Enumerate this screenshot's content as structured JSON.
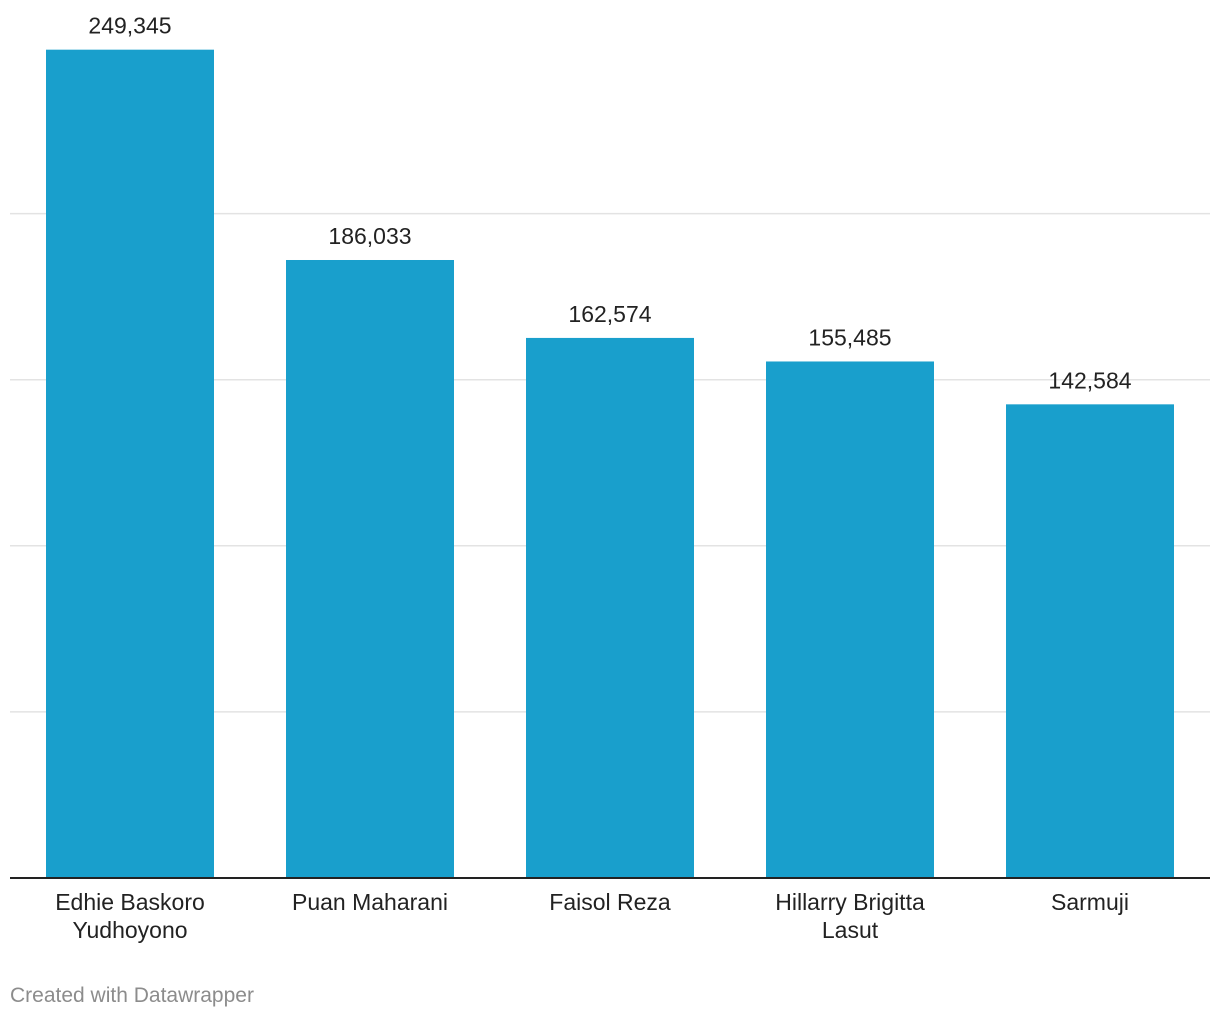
{
  "chart_data": {
    "type": "bar",
    "categories": [
      [
        "Edhie Baskoro",
        "Yudhoyono"
      ],
      [
        "Puan Maharani"
      ],
      [
        "Faisol Reza"
      ],
      [
        "Hillarry Brigitta",
        "Lasut"
      ],
      [
        "Sarmuji"
      ]
    ],
    "values": [
      249345,
      186033,
      162574,
      155485,
      142584
    ],
    "value_labels": [
      "249,345",
      "186,033",
      "162,574",
      "155,485",
      "142,584"
    ],
    "title": "",
    "xlabel": "",
    "ylabel": "",
    "ylim": [
      0,
      250000
    ],
    "gridline_values": [
      50000,
      100000,
      150000,
      200000
    ],
    "grid": true,
    "legend": "none",
    "bar_color": "#199fcc"
  },
  "footer": {
    "credit": "Created with Datawrapper"
  }
}
